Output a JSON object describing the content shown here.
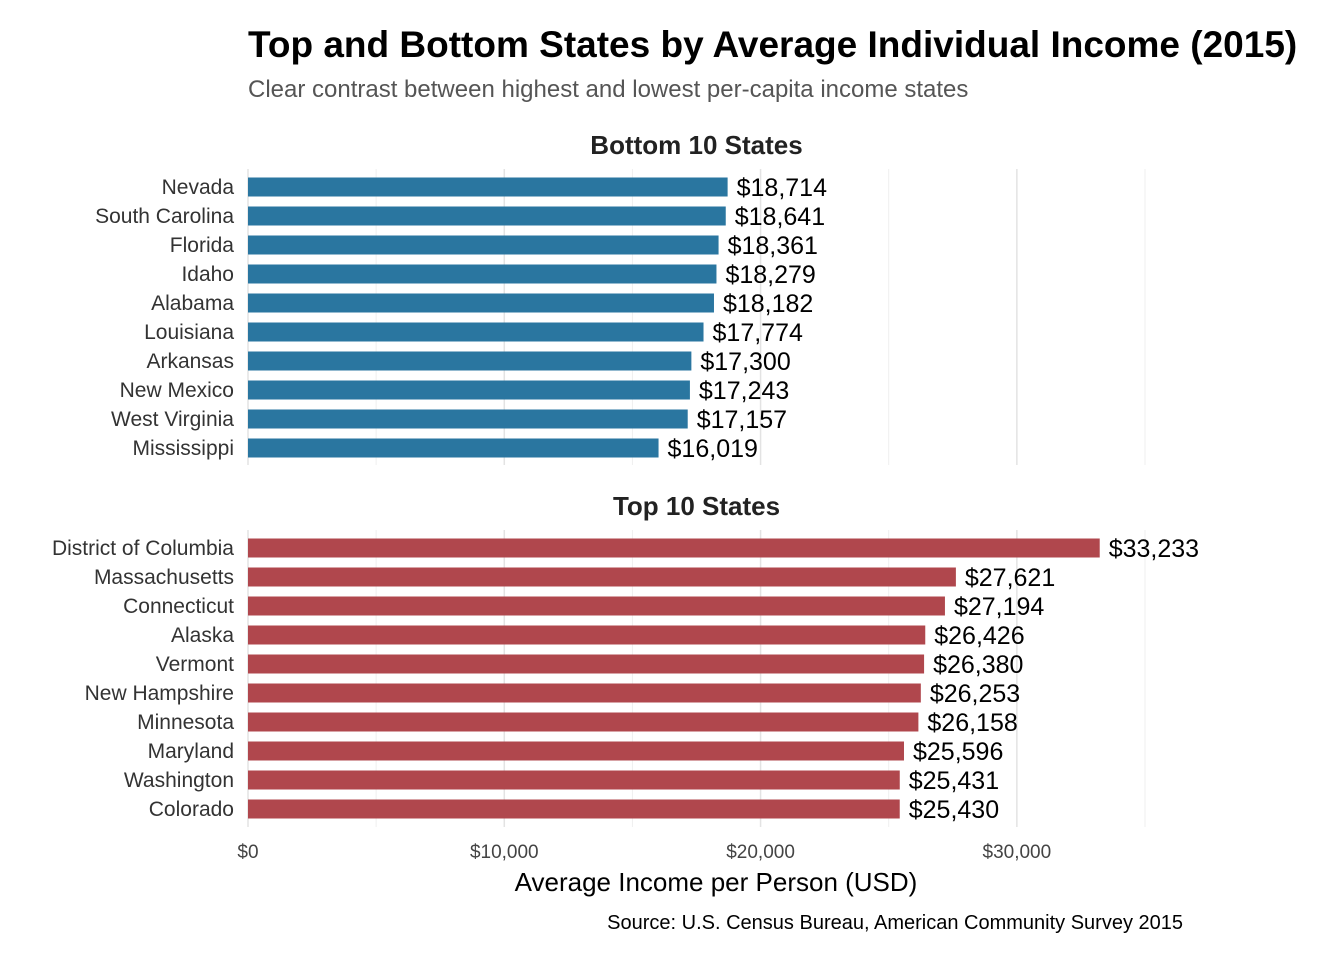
{
  "title": "Top and Bottom States by Average Individual Income (2015)",
  "subtitle": "Clear contrast between highest and lowest per-capita income states",
  "caption": "Source: U.S. Census Bureau, American Community Survey 2015",
  "colors": {
    "bottom": "#2a76a0",
    "top": "#b0474d"
  },
  "chart_data": {
    "type": "bar",
    "orientation": "horizontal",
    "xlabel": "Average Income per Person (USD)",
    "xlim": [
      0,
      35000
    ],
    "x_ticks": [
      0,
      10000,
      20000,
      30000
    ],
    "x_tick_labels": [
      "$0",
      "$10,000",
      "$20,000",
      "$30,000"
    ],
    "grid": true,
    "legend": "none",
    "facets": [
      {
        "name": "Bottom 10 States",
        "color": "#2a76a0",
        "categories": [
          "Nevada",
          "South Carolina",
          "Florida",
          "Idaho",
          "Alabama",
          "Louisiana",
          "Arkansas",
          "New Mexico",
          "West Virginia",
          "Mississippi"
        ],
        "values": [
          18714,
          18641,
          18361,
          18279,
          18182,
          17774,
          17300,
          17243,
          17157,
          16019
        ],
        "labels": [
          "$18,714",
          "$18,641",
          "$18,361",
          "$18,279",
          "$18,182",
          "$17,774",
          "$17,300",
          "$17,243",
          "$17,157",
          "$16,019"
        ]
      },
      {
        "name": "Top 10 States",
        "color": "#b0474d",
        "categories": [
          "District of Columbia",
          "Massachusetts",
          "Connecticut",
          "Alaska",
          "Vermont",
          "New Hampshire",
          "Minnesota",
          "Maryland",
          "Washington",
          "Colorado"
        ],
        "values": [
          33233,
          27621,
          27194,
          26426,
          26380,
          26253,
          26158,
          25596,
          25431,
          25430
        ],
        "labels": [
          "$33,233",
          "$27,621",
          "$27,194",
          "$26,426",
          "$26,380",
          "$26,253",
          "$26,158",
          "$25,596",
          "$25,431",
          "$25,430"
        ]
      }
    ]
  }
}
